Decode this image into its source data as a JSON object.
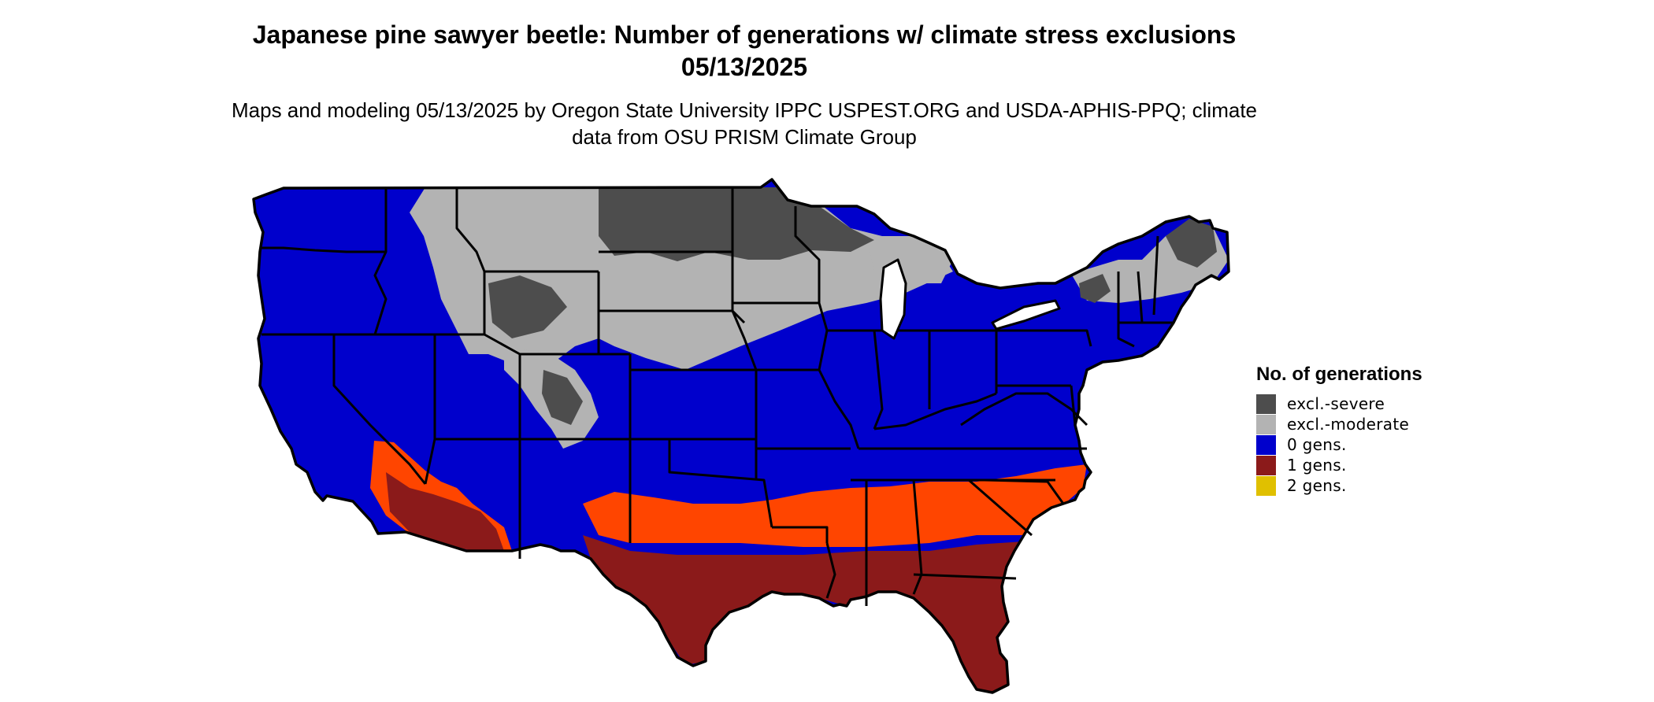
{
  "title": "Japanese pine sawyer beetle: Number of generations w/ climate stress exclusions 05/13/2025",
  "subtitle": "Maps and modeling 05/13/2025 by Oregon State University IPPC USPEST.ORG and USDA-APHIS-PPQ; climate data from OSU PRISM Climate Group",
  "legend": {
    "title": "No. of generations",
    "items": [
      {
        "label": "excl.-severe",
        "color": "#4d4d4d"
      },
      {
        "label": "excl.-moderate",
        "color": "#b3b3b3"
      },
      {
        "label": "0 gens.",
        "color": "#0000cc"
      },
      {
        "label": "1 gens.",
        "color": "#8b1a1a"
      },
      {
        "label": "2 gens.",
        "color": "#e0c000"
      }
    ]
  },
  "colors": {
    "severe": "#4d4d4d",
    "moderate": "#b3b3b3",
    "zero_gens": "#0000cc",
    "one_gens": "#8b1a1a",
    "one_gens_light": "#ff4500",
    "border": "#000000"
  }
}
